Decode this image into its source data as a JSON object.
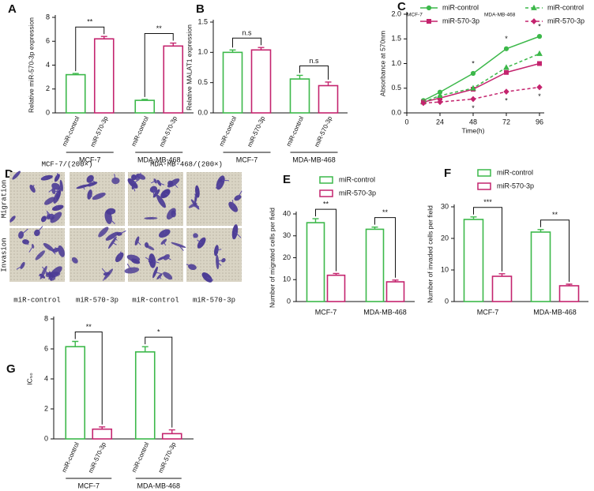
{
  "chart_data": [
    {
      "type": "bar",
      "panel": "A",
      "ylabel": "Relative miR-570-3p expression",
      "categories": [
        "MCF-7",
        "MDA-MB-468"
      ],
      "series": [
        {
          "name": "miR-control",
          "color": "#3cb84a",
          "values": [
            3.2,
            1.05
          ],
          "errors": [
            0.1,
            0.08
          ]
        },
        {
          "name": "miR-570-3p",
          "color": "#c4246e",
          "values": [
            6.2,
            5.6
          ],
          "errors": [
            0.2,
            0.25
          ]
        }
      ],
      "significance": [
        "**",
        "**"
      ],
      "ylim": [
        0,
        8
      ],
      "yticks": [
        0,
        2,
        4,
        6,
        8
      ]
    },
    {
      "type": "bar",
      "panel": "B",
      "ylabel": "Relative MALAT1 expression",
      "categories": [
        "MCF-7",
        "MDA-MB-468"
      ],
      "series": [
        {
          "name": "miR-control",
          "color": "#3cb84a",
          "values": [
            1.0,
            0.56
          ],
          "errors": [
            0.04,
            0.06
          ]
        },
        {
          "name": "miR-570-3p",
          "color": "#c4246e",
          "values": [
            1.04,
            0.45
          ],
          "errors": [
            0.04,
            0.06
          ]
        }
      ],
      "significance": [
        "n.s",
        "n.s"
      ],
      "ylim": [
        0,
        1.5
      ],
      "yticks": [
        {
          "value": 0,
          "label": "0.0"
        },
        0.5,
        {
          "value": 1,
          "label": "1.0"
        },
        1.5
      ]
    },
    {
      "type": "line",
      "panel": "C",
      "xlabel": "Time(h)",
      "ylabel": "Absorbance at 570nm",
      "x": [
        12,
        24,
        48,
        72,
        96
      ],
      "xlim": [
        0,
        96
      ],
      "xticks": [
        0,
        24,
        48,
        72,
        96
      ],
      "ylim": [
        0,
        2
      ],
      "yticks": [
        {
          "value": 0,
          "label": "0.0"
        },
        0.5,
        {
          "value": 1,
          "label": "1.0"
        },
        1.5,
        {
          "value": 2,
          "label": "2.0"
        }
      ],
      "groups": [
        {
          "name": "MCF-7",
          "series": [
            {
              "name": "miR-control",
              "color": "#3cb84a",
              "linestyle": "solid",
              "marker": "circle",
              "values": [
                0.25,
                0.42,
                0.8,
                1.3,
                1.55
              ]
            },
            {
              "name": "miR-570-3p",
              "color": "#c4246e",
              "linestyle": "solid",
              "marker": "square",
              "values": [
                0.22,
                0.3,
                0.48,
                0.82,
                1.0
              ]
            }
          ]
        },
        {
          "name": "MDA-MB-468",
          "series": [
            {
              "name": "miR-control",
              "color": "#3cb84a",
              "linestyle": "dashed",
              "marker": "triangle",
              "values": [
                0.22,
                0.35,
                0.5,
                0.92,
                1.2
              ]
            },
            {
              "name": "miR-570-3p",
              "color": "#c4246e",
              "linestyle": "dashed",
              "marker": "diamond",
              "values": [
                0.2,
                0.22,
                0.28,
                0.43,
                0.52
              ]
            }
          ]
        }
      ],
      "significance_x": [
        48,
        72,
        96
      ],
      "significance_label": "*"
    },
    {
      "type": "bar",
      "panel": "E",
      "ylabel": "Number of migrated cells per field",
      "legend": "top",
      "categories": [
        "MCF-7",
        "MDA-MB-468"
      ],
      "series": [
        {
          "name": "miR-control",
          "color": "#3cb84a",
          "values": [
            36,
            33
          ],
          "errors": [
            1.8,
            1.0
          ]
        },
        {
          "name": "miR-570-3p",
          "color": "#c4246e",
          "values": [
            12,
            9
          ],
          "errors": [
            0.8,
            0.8
          ]
        }
      ],
      "significance": [
        "**",
        "**"
      ],
      "ylim": [
        0,
        40
      ],
      "yticks": [
        0,
        10,
        20,
        30,
        40
      ]
    },
    {
      "type": "bar",
      "panel": "F",
      "ylabel": "Number of invaded cells per field",
      "legend": "top",
      "categories": [
        "MCF-7",
        "MDA-MB-468"
      ],
      "series": [
        {
          "name": "miR-control",
          "color": "#3cb84a",
          "values": [
            26,
            22
          ],
          "errors": [
            0.8,
            0.8
          ]
        },
        {
          "name": "miR-570-3p",
          "color": "#c4246e",
          "values": [
            8,
            5
          ],
          "errors": [
            0.8,
            0.5
          ]
        }
      ],
      "significance": [
        "***",
        "**"
      ],
      "ylim": [
        0,
        30
      ],
      "yticks": [
        0,
        10,
        20,
        30
      ]
    },
    {
      "type": "bar",
      "panel": "G",
      "ylabel": "IC₅₀",
      "categories": [
        "MCF-7",
        "MDA-MB-468"
      ],
      "series": [
        {
          "name": "miR-control",
          "color": "#3cb84a",
          "values": [
            6.15,
            5.8
          ],
          "errors": [
            0.35,
            0.35
          ]
        },
        {
          "name": "miR-570-3p",
          "color": "#c4246e",
          "values": [
            0.65,
            0.35
          ],
          "errors": [
            0.15,
            0.25
          ]
        }
      ],
      "significance": [
        "**",
        "*"
      ],
      "ylim": [
        0,
        8
      ],
      "yticks": [
        0,
        2,
        4,
        6,
        8
      ]
    }
  ],
  "image_panel": {
    "panel": "D",
    "column_titles": [
      "MCF-7/(200×)",
      "MDA-MB-468/(200×)"
    ],
    "row_labels": [
      "Migration",
      "Invasion"
    ],
    "image_labels": [
      "miR-control",
      "miR-570-3p",
      "miR-control",
      "miR-570-3p"
    ]
  }
}
